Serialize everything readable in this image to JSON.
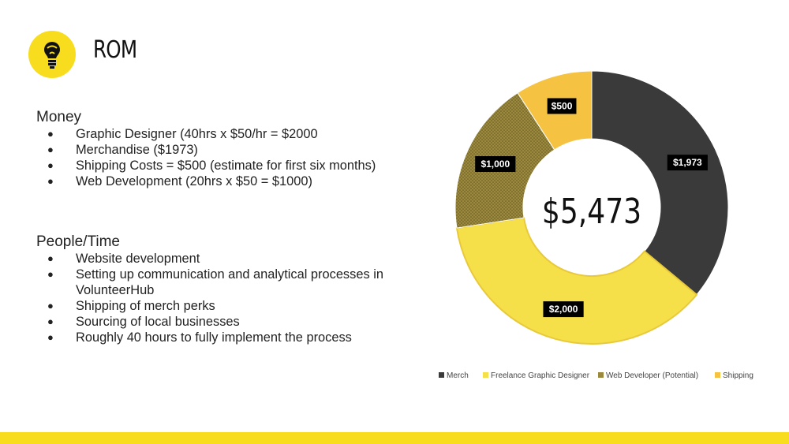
{
  "slide": {
    "title": "ROM",
    "logo_icon": "lightbulb-icon"
  },
  "money": {
    "heading": "Money",
    "items": [
      "Graphic Designer (40hrs x $50/hr = $2000",
      "Merchandise ($1973)",
      "Shipping Costs = $500 (estimate for first six months)",
      "Web Development (20hrs x $50 = $1000)"
    ]
  },
  "people": {
    "heading": "People/Time",
    "items": [
      "Website development",
      "Setting up communication and analytical  processes in VolunteerHub",
      "Shipping of merch perks",
      "Sourcing of local businesses",
      "Roughly 40 hours to fully implement the process"
    ]
  },
  "colors": {
    "accent_yellow": "#f7dd1e",
    "merch": "#3a3a3a",
    "freelance": "#f6e04a",
    "webdev": "#9b8a3e",
    "shipping": "#f5c242"
  },
  "chart_data": {
    "type": "pie",
    "variant": "doughnut",
    "center_label": "$5,473",
    "categories": [
      "Merch",
      "Freelance Graphic Designer",
      "Web Developer (Potential)",
      "Shipping"
    ],
    "values": [
      1973,
      2000,
      1000,
      500
    ],
    "data_labels": [
      "$1,973",
      "$2,000",
      "$1,000",
      "$500"
    ],
    "colors": [
      "#3a3a3a",
      "#f6e04a",
      "#9b8a3e",
      "#f5c242"
    ],
    "legend_position": "bottom"
  }
}
